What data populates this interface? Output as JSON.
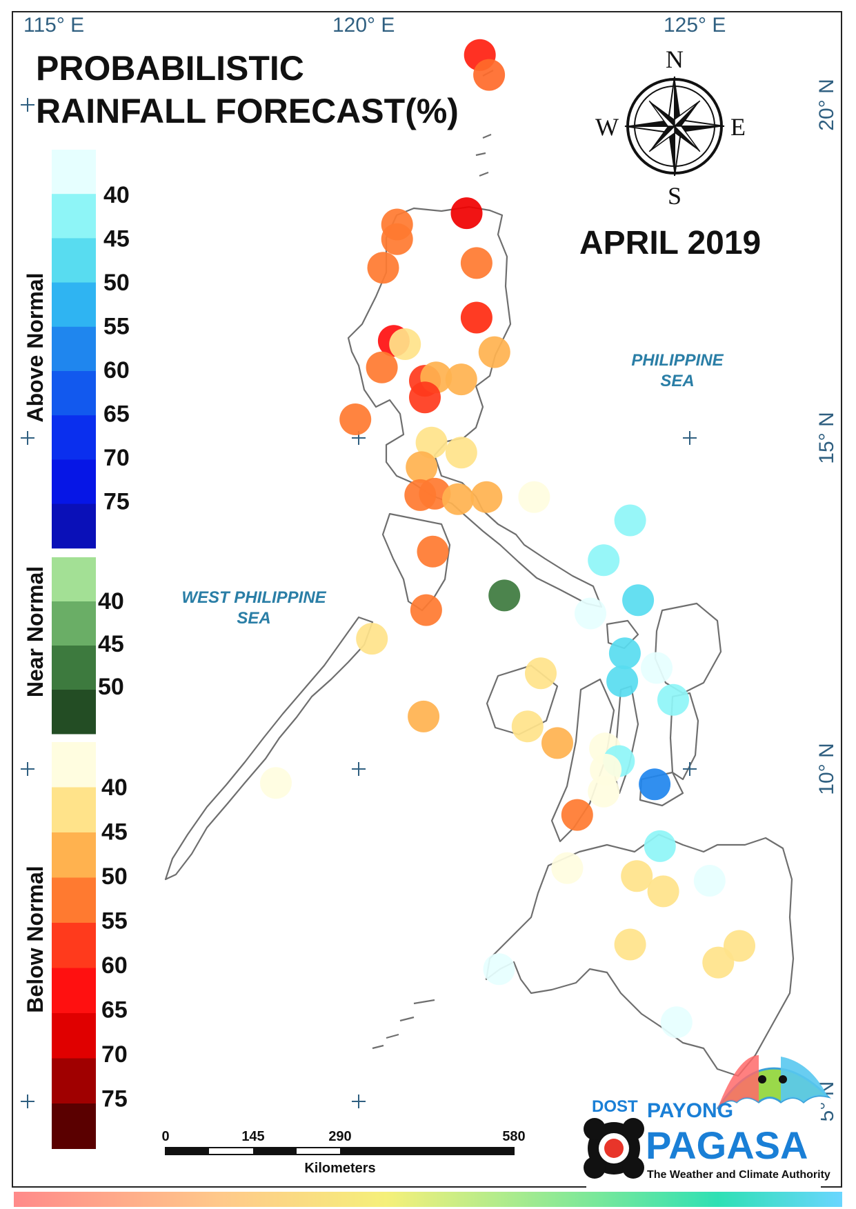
{
  "map": {
    "title_line1": "PROBABILISTIC",
    "title_line2": "RAINFALL FORECAST(%)",
    "month": "APRIL 2019",
    "longitudes": [
      "115° E",
      "120° E",
      "125° E"
    ],
    "latitudes": [
      "20° N",
      "15° N",
      "10° N",
      "5° N"
    ],
    "seas": {
      "philippine_line1": "PHILIPPINE",
      "philippine_line2": "SEA",
      "west_line1": "WEST PHILIPPINE",
      "west_line2": "SEA"
    },
    "compass": {
      "n": "N",
      "s": "S",
      "e": "E",
      "w": "W"
    },
    "scale_bar": {
      "labels": [
        "0",
        "145",
        "290",
        "580"
      ],
      "unit": "Kilometers"
    },
    "logo": {
      "dost": "DOST",
      "payong": "PAYONG",
      "pagasa": "PAGASA",
      "tagline": "The Weather and Climate Authority"
    }
  },
  "legend": {
    "above_normal": {
      "heading": "Above Normal",
      "labels": [
        "40",
        "45",
        "50",
        "55",
        "60",
        "65",
        "70",
        "75"
      ],
      "colors": [
        "#e6ffff",
        "#8ef5f7",
        "#58dcf0",
        "#2fb4f2",
        "#1f86ee",
        "#1259ee",
        "#0a2fee",
        "#0616e6",
        "#0a10b8"
      ]
    },
    "near_normal": {
      "heading": "Near Normal",
      "labels": [
        "40",
        "45",
        "50"
      ],
      "colors": [
        "#a3e095",
        "#6aae66",
        "#3d7a3e",
        "#234d24"
      ]
    },
    "below_normal": {
      "heading": "Below Normal",
      "labels": [
        "40",
        "45",
        "50",
        "55",
        "60",
        "65",
        "70",
        "75"
      ],
      "colors": [
        "#fffde0",
        "#ffe38a",
        "#ffb24f",
        "#ff7a30",
        "#ff3a1c",
        "#ff1010",
        "#e00000",
        "#a00000",
        "#5a0000"
      ]
    }
  },
  "stations": [
    {
      "lon": 121.83,
      "lat": 20.75,
      "color": "#ff2010"
    },
    {
      "lon": 121.97,
      "lat": 20.45,
      "color": "#ff6a2a"
    },
    {
      "lon": 121.63,
      "lat": 18.37,
      "color": "#f00000"
    },
    {
      "lon": 120.58,
      "lat": 18.2,
      "color": "#ff7a30"
    },
    {
      "lon": 120.58,
      "lat": 17.98,
      "color": "#ff7a30"
    },
    {
      "lon": 121.78,
      "lat": 17.62,
      "color": "#ff7a30"
    },
    {
      "lon": 120.37,
      "lat": 17.55,
      "color": "#ff7a30"
    },
    {
      "lon": 121.78,
      "lat": 16.8,
      "color": "#ff2a10"
    },
    {
      "lon": 120.53,
      "lat": 16.45,
      "color": "#ff1010"
    },
    {
      "lon": 120.7,
      "lat": 16.4,
      "color": "#ffe38a"
    },
    {
      "lon": 122.05,
      "lat": 16.28,
      "color": "#ffb24f"
    },
    {
      "lon": 120.35,
      "lat": 16.05,
      "color": "#ff7a30"
    },
    {
      "lon": 121.0,
      "lat": 15.85,
      "color": "#ff3a1c"
    },
    {
      "lon": 121.17,
      "lat": 15.9,
      "color": "#ffb24f"
    },
    {
      "lon": 121.55,
      "lat": 15.87,
      "color": "#ffb24f"
    },
    {
      "lon": 121.0,
      "lat": 15.6,
      "color": "#ff3a1c"
    },
    {
      "lon": 119.95,
      "lat": 15.27,
      "color": "#ff7a30"
    },
    {
      "lon": 121.1,
      "lat": 14.92,
      "color": "#ffe38a"
    },
    {
      "lon": 121.55,
      "lat": 14.77,
      "color": "#ffe38a"
    },
    {
      "lon": 120.95,
      "lat": 14.55,
      "color": "#ffb24f"
    },
    {
      "lon": 120.93,
      "lat": 14.13,
      "color": "#ff7a30"
    },
    {
      "lon": 121.15,
      "lat": 14.15,
      "color": "#ff7a30"
    },
    {
      "lon": 121.5,
      "lat": 14.07,
      "color": "#ffb24f"
    },
    {
      "lon": 121.93,
      "lat": 14.1,
      "color": "#ffb24f"
    },
    {
      "lon": 122.65,
      "lat": 14.1,
      "color": "#fffde0"
    },
    {
      "lon": 124.1,
      "lat": 13.75,
      "color": "#8ef5f7"
    },
    {
      "lon": 121.12,
      "lat": 13.28,
      "color": "#ff7a30"
    },
    {
      "lon": 123.7,
      "lat": 13.15,
      "color": "#8ef5f7"
    },
    {
      "lon": 122.2,
      "lat": 12.62,
      "color": "#3d7a3e"
    },
    {
      "lon": 121.02,
      "lat": 12.4,
      "color": "#ff7a30"
    },
    {
      "lon": 123.5,
      "lat": 12.35,
      "color": "#e6ffff"
    },
    {
      "lon": 124.22,
      "lat": 12.55,
      "color": "#58dcf0"
    },
    {
      "lon": 120.2,
      "lat": 11.97,
      "color": "#ffe38a"
    },
    {
      "lon": 124.02,
      "lat": 11.75,
      "color": "#58dcf0"
    },
    {
      "lon": 124.5,
      "lat": 11.53,
      "color": "#e6ffff"
    },
    {
      "lon": 122.75,
      "lat": 11.45,
      "color": "#ffe38a"
    },
    {
      "lon": 123.98,
      "lat": 11.33,
      "color": "#58dcf0"
    },
    {
      "lon": 124.75,
      "lat": 11.05,
      "color": "#8ef5f7"
    },
    {
      "lon": 120.98,
      "lat": 10.8,
      "color": "#ffb24f"
    },
    {
      "lon": 122.55,
      "lat": 10.65,
      "color": "#ffe38a"
    },
    {
      "lon": 123.0,
      "lat": 10.4,
      "color": "#ffb24f"
    },
    {
      "lon": 123.72,
      "lat": 10.32,
      "color": "#fffde0"
    },
    {
      "lon": 123.93,
      "lat": 10.13,
      "color": "#8ef5f7"
    },
    {
      "lon": 123.73,
      "lat": 10.0,
      "color": "#fffde0"
    },
    {
      "lon": 124.47,
      "lat": 9.78,
      "color": "#1f86ee"
    },
    {
      "lon": 118.75,
      "lat": 9.8,
      "color": "#fffde0"
    },
    {
      "lon": 123.7,
      "lat": 9.67,
      "color": "#fffde0"
    },
    {
      "lon": 123.3,
      "lat": 9.32,
      "color": "#ff7a30"
    },
    {
      "lon": 124.55,
      "lat": 8.85,
      "color": "#8ef5f7"
    },
    {
      "lon": 123.15,
      "lat": 8.52,
      "color": "#fffde0"
    },
    {
      "lon": 124.2,
      "lat": 8.4,
      "color": "#ffe38a"
    },
    {
      "lon": 125.3,
      "lat": 8.33,
      "color": "#e6ffff"
    },
    {
      "lon": 124.6,
      "lat": 8.17,
      "color": "#ffe38a"
    },
    {
      "lon": 124.1,
      "lat": 7.37,
      "color": "#ffe38a"
    },
    {
      "lon": 125.75,
      "lat": 7.35,
      "color": "#ffe38a"
    },
    {
      "lon": 125.43,
      "lat": 7.1,
      "color": "#ffe38a"
    },
    {
      "lon": 122.12,
      "lat": 7.0,
      "color": "#e6ffff"
    },
    {
      "lon": 124.8,
      "lat": 6.2,
      "color": "#e6ffff"
    }
  ]
}
